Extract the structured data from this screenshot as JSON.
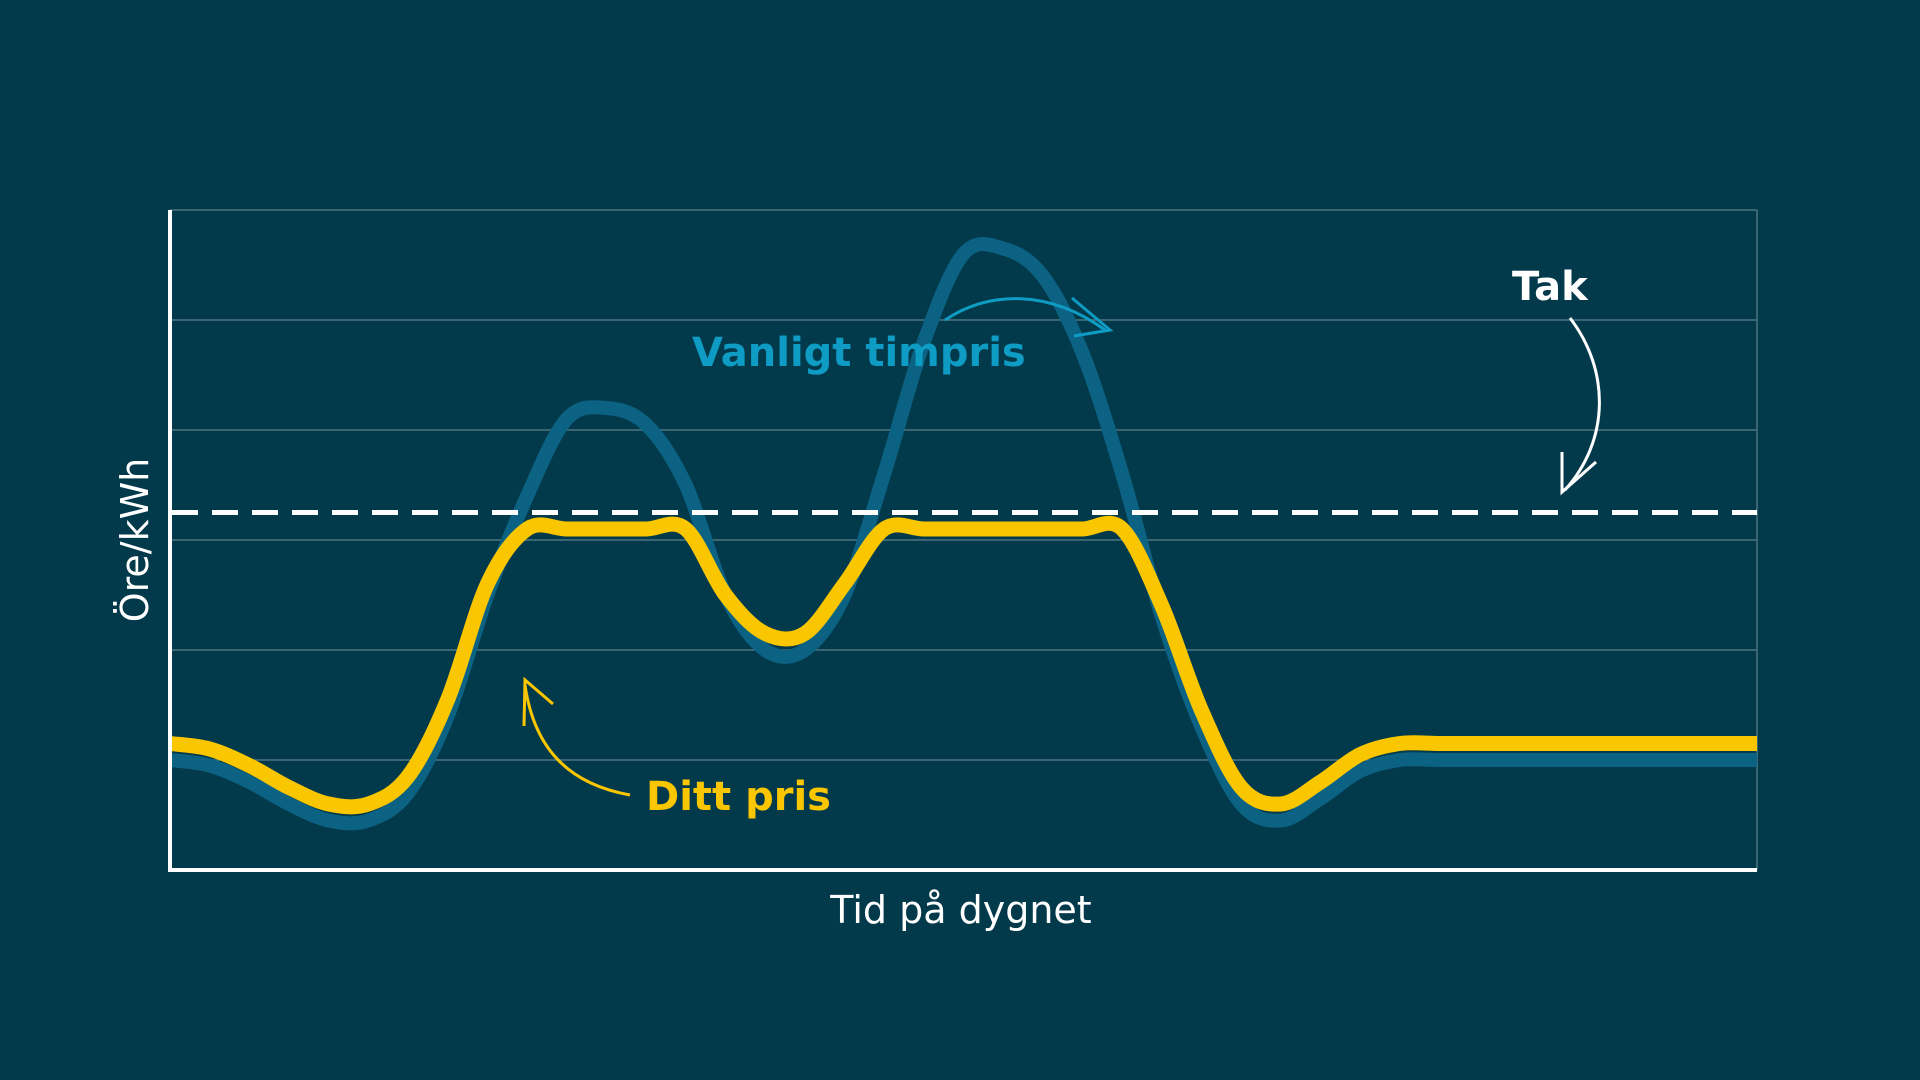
{
  "chart_data": {
    "type": "line",
    "xlabel": "Tid på dygnet",
    "ylabel": "Öre/kWh",
    "xlim": [
      0,
      24
    ],
    "ylim": [
      0,
      6
    ],
    "grid": true,
    "x": [
      0,
      0.6,
      1.2,
      1.8,
      2.4,
      3.0,
      3.6,
      4.2,
      4.8,
      5.4,
      6.0,
      6.6,
      7.2,
      7.8,
      8.4,
      9.0,
      9.6,
      10.2,
      10.8,
      11.4,
      12.0,
      12.6,
      13.2,
      13.8,
      14.4,
      15.0,
      15.6,
      16.2,
      16.8,
      17.4,
      18.0,
      18.6,
      19.2,
      19.8,
      20.4,
      21.0,
      21.6,
      22.2,
      22.8,
      23.4,
      24.0
    ],
    "series": [
      {
        "name": "Vanligt timpris",
        "color": "#0b6283",
        "values": [
          1.0,
          0.95,
          0.8,
          0.6,
          0.45,
          0.45,
          0.7,
          1.4,
          2.5,
          3.4,
          4.1,
          4.2,
          4.05,
          3.5,
          2.5,
          2.0,
          2.0,
          2.5,
          3.6,
          4.8,
          5.6,
          5.65,
          5.4,
          4.7,
          3.6,
          2.3,
          1.3,
          0.6,
          0.45,
          0.65,
          0.9,
          1.0,
          1.0,
          1.0,
          1.0,
          1.0,
          1.0,
          1.0,
          1.0,
          1.0,
          1.0
        ],
        "note_x_exceed": "none"
      },
      {
        "name": "Ditt pris",
        "color": "#f9c600",
        "values": [
          1.15,
          1.1,
          0.95,
          0.75,
          0.6,
          0.6,
          0.85,
          1.55,
          2.6,
          3.1,
          3.1,
          3.1,
          3.1,
          3.1,
          2.5,
          2.15,
          2.15,
          2.6,
          3.1,
          3.1,
          3.1,
          3.1,
          3.1,
          3.1,
          3.1,
          2.4,
          1.45,
          0.75,
          0.6,
          0.8,
          1.05,
          1.15,
          1.15,
          1.15,
          1.15,
          1.15,
          1.15,
          1.15,
          1.15,
          1.15,
          1.15
        ]
      }
    ],
    "cap": {
      "label": "Tak",
      "value": 3.25,
      "color": "#ffffff"
    },
    "annotations": {
      "vanligt": {
        "text": "Vanligt timpris",
        "color": "#0e9bc4"
      },
      "ditt": {
        "text": "Ditt pris",
        "color": "#f9c600"
      },
      "tak": {
        "text": "Tak",
        "color": "#ffffff"
      }
    },
    "colors": {
      "background": "#033a4b",
      "grid": "#4d7482",
      "axis": "#ffffff"
    }
  }
}
